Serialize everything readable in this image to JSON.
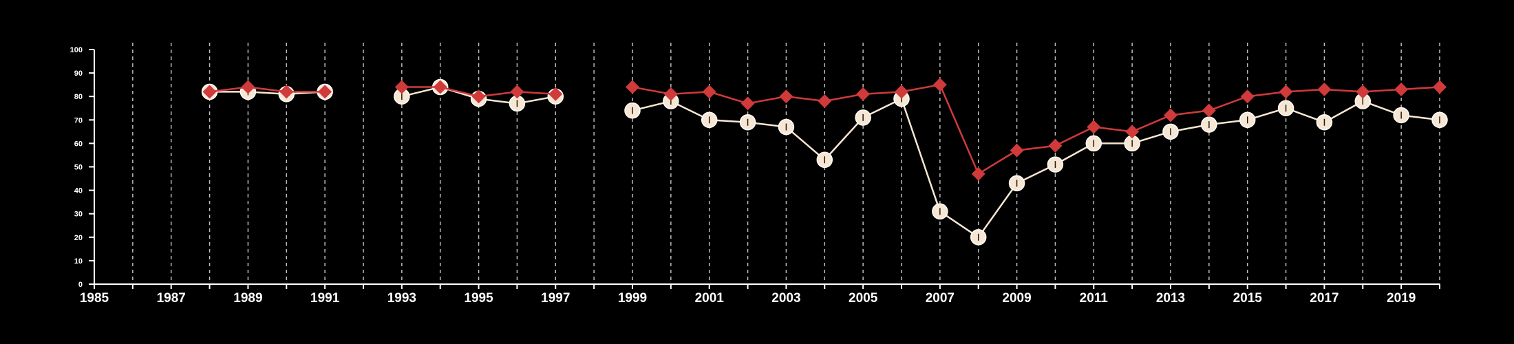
{
  "chart_data": {
    "type": "line",
    "title": "",
    "xlabel": "",
    "ylabel": "",
    "xlim": [
      1985,
      2020
    ],
    "ylim": [
      0,
      100
    ],
    "x_ticks": [
      1985,
      1987,
      1989,
      1991,
      1993,
      1995,
      1997,
      1999,
      2001,
      2003,
      2005,
      2007,
      2009,
      2011,
      2013,
      2015,
      2017,
      2019
    ],
    "x_tick_labels": [
      "1985",
      "1987",
      "1989",
      "1991",
      "1993",
      "1995",
      "1997",
      "1999",
      "2001",
      "2003",
      "2005",
      "2007",
      "2009",
      "2011",
      "2013",
      "2015",
      "2017",
      "2019"
    ],
    "y_ticks": [
      0,
      10,
      20,
      30,
      40,
      50,
      60,
      70,
      80,
      90,
      100
    ],
    "y_tick_labels": [
      "0",
      "10",
      "20",
      "30",
      "40",
      "50",
      "60",
      "70",
      "80",
      "90",
      "100"
    ],
    "gridlines": "vertical-dashed",
    "legend": "none",
    "series": [
      {
        "marker": "diamond",
        "color": "#d03a3a",
        "points": [
          [
            1988,
            82
          ],
          [
            1989,
            84
          ],
          [
            1990,
            82
          ],
          [
            1991,
            82
          ],
          [
            1993,
            84
          ],
          [
            1994,
            84
          ],
          [
            1995,
            80
          ],
          [
            1996,
            82
          ],
          [
            1997,
            81
          ],
          [
            1999,
            84
          ],
          [
            2000,
            81
          ],
          [
            2001,
            82
          ],
          [
            2002,
            77
          ],
          [
            2003,
            80
          ],
          [
            2004,
            78
          ],
          [
            2005,
            81
          ],
          [
            2006,
            82
          ],
          [
            2007,
            85
          ],
          [
            2008,
            47
          ],
          [
            2009,
            57
          ],
          [
            2010,
            59
          ],
          [
            2011,
            67
          ],
          [
            2012,
            65
          ],
          [
            2013,
            72
          ],
          [
            2014,
            74
          ],
          [
            2015,
            80
          ],
          [
            2016,
            82
          ],
          [
            2017,
            83
          ],
          [
            2018,
            82
          ],
          [
            2019,
            83
          ],
          [
            2020,
            84
          ]
        ]
      },
      {
        "marker": "circle",
        "color": "#f7e6d2",
        "points": [
          [
            1988,
            82
          ],
          [
            1989,
            82
          ],
          [
            1990,
            81
          ],
          [
            1991,
            82
          ],
          [
            1993,
            80
          ],
          [
            1994,
            84
          ],
          [
            1995,
            79
          ],
          [
            1996,
            77
          ],
          [
            1997,
            80
          ],
          [
            1999,
            74
          ],
          [
            2000,
            78
          ],
          [
            2001,
            70
          ],
          [
            2002,
            69
          ],
          [
            2003,
            67
          ],
          [
            2004,
            53
          ],
          [
            2005,
            71
          ],
          [
            2006,
            79
          ],
          [
            2007,
            31
          ],
          [
            2008,
            20
          ],
          [
            2009,
            43
          ],
          [
            2010,
            51
          ],
          [
            2011,
            60
          ],
          [
            2012,
            60
          ],
          [
            2013,
            65
          ],
          [
            2014,
            68
          ],
          [
            2015,
            70
          ],
          [
            2016,
            75
          ],
          [
            2017,
            69
          ],
          [
            2018,
            78
          ],
          [
            2019,
            72
          ],
          [
            2020,
            70
          ]
        ]
      }
    ]
  }
}
